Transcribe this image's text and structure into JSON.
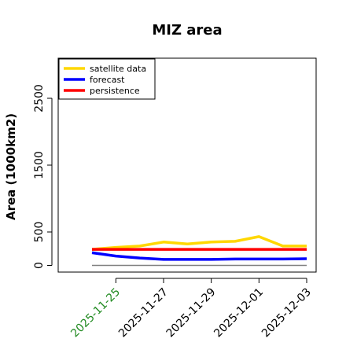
{
  "chart_data": {
    "type": "line",
    "title": "MIZ area",
    "xlabel": "",
    "ylabel": "Area (1000km2)",
    "x": [
      "2025-11-24",
      "2025-11-25",
      "2025-11-26",
      "2025-11-27",
      "2025-11-28",
      "2025-11-29",
      "2025-11-30",
      "2025-12-01",
      "2025-12-02",
      "2025-12-03"
    ],
    "xticks": [
      "2025-11-25",
      "2025-11-27",
      "2025-11-29",
      "2025-12-01",
      "2025-12-03"
    ],
    "xtick_colors": [
      "#228b22",
      "#000000",
      "#000000",
      "#000000",
      "#000000"
    ],
    "yticks": [
      0,
      500,
      1500,
      2500
    ],
    "ylim": [
      -100,
      3100
    ],
    "grid": false,
    "legend_position": "top-left",
    "reference_line": {
      "value": 0,
      "color": "#808080"
    },
    "series": [
      {
        "name": "satellite data",
        "color": "#ffd700",
        "values": [
          240,
          270,
          290,
          350,
          320,
          350,
          360,
          430,
          290,
          290
        ]
      },
      {
        "name": "forecast",
        "color": "#0000ff",
        "values": [
          190,
          140,
          110,
          90,
          90,
          90,
          95,
          95,
          95,
          100
        ]
      },
      {
        "name": "persistence",
        "color": "#ff0000",
        "values": [
          240,
          240,
          240,
          240,
          240,
          240,
          240,
          240,
          240,
          240
        ]
      }
    ]
  }
}
